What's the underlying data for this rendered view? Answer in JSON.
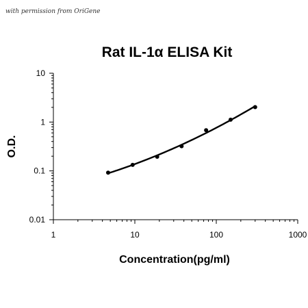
{
  "watermark": "with permission from OriGene",
  "chart_data": {
    "type": "line",
    "title": "Rat IL-1α ELISA Kit",
    "xlabel": "Concentration(pg/ml)",
    "ylabel": "O.D.",
    "xscale": "log",
    "yscale": "log",
    "xlim": [
      1,
      1000
    ],
    "ylim": [
      0.01,
      10
    ],
    "x_ticks": [
      "1",
      "10",
      "100",
      "1000"
    ],
    "y_ticks": [
      "10",
      "1",
      "0.1",
      "0.01"
    ],
    "grid": false,
    "legend": "none",
    "series": [
      {
        "x": [
          4.7,
          9.4,
          18.8,
          37.5,
          75,
          150,
          300
        ],
        "y": [
          0.092,
          0.133,
          0.195,
          0.32,
          0.68,
          1.12,
          2.02
        ]
      }
    ]
  }
}
